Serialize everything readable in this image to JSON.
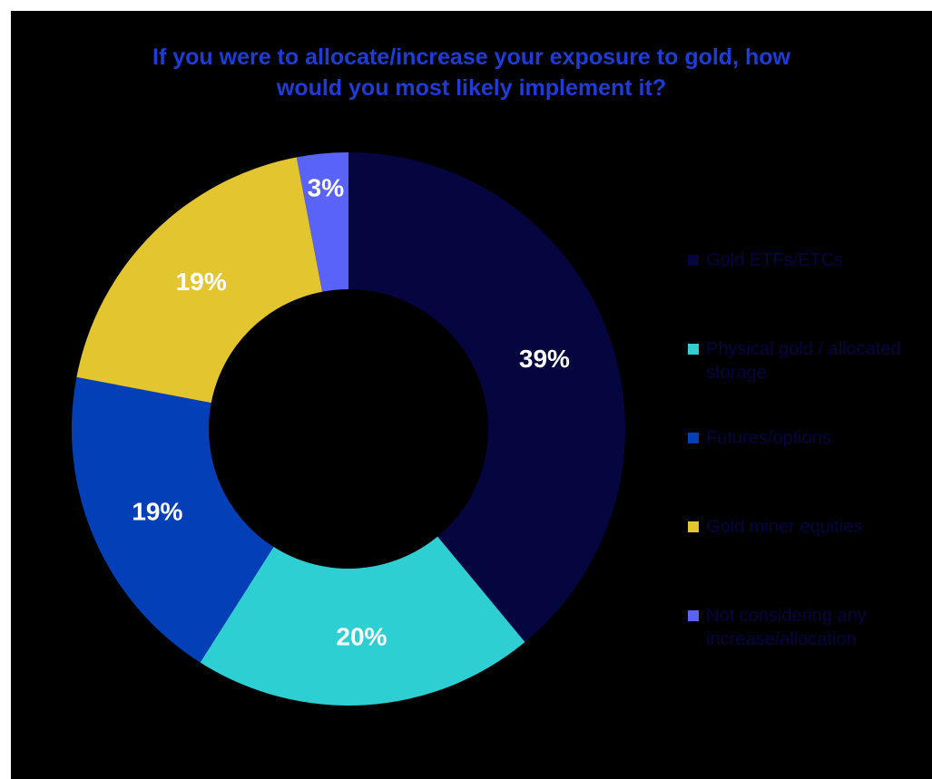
{
  "chart_data": {
    "type": "pie",
    "style": "donut",
    "title_lines": [
      "If you were to allocate/increase your exposure to gold, how",
      "would you most likely implement it?"
    ],
    "slices": [
      {
        "label": "Gold ETFs/ETCs",
        "value": 39,
        "display": "39%",
        "color": "#05053f"
      },
      {
        "label": "Physical gold / allocated storage",
        "value": 20,
        "display": "20%",
        "color": "#2ecfd3"
      },
      {
        "label": "Futures/options",
        "value": 19,
        "display": "19%",
        "color": "#0340b8"
      },
      {
        "label": "Gold miner equities",
        "value": 19,
        "display": "19%",
        "color": "#e2c52f"
      },
      {
        "label": "Not considering any increase/allocation",
        "value": 3,
        "display": "3%",
        "color": "#5a63f7"
      }
    ],
    "legend_position": "right",
    "legend_text_color": "#05053f",
    "data_label_color": "#ffffff",
    "background": "#000000",
    "title_color": "#1f3cd6"
  }
}
